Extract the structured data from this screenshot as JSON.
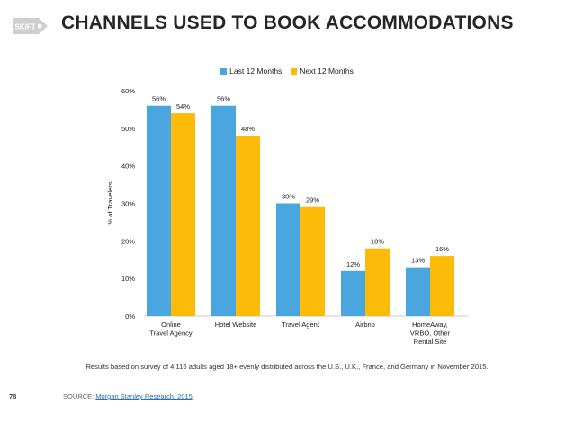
{
  "title": "CHANNELS USED TO BOOK ACCOMMODATIONS",
  "logo": {
    "text": "SKIFT",
    "color": "#cfcfcf"
  },
  "note": "Results based on survey of 4,116 adults aged 18+ evenly distributed across the U.S., U.K., France, and Germany in November 2015.",
  "page_number": "78",
  "source": {
    "label": "SOURCE:",
    "link_text": "Morgan Stanley Research, 2015"
  },
  "colors": {
    "last": "#4aa6de",
    "next": "#fcbb08"
  },
  "chart_data": {
    "type": "bar",
    "title": "",
    "ylabel": "% of Travelers",
    "xlabel": "",
    "ylim": [
      0,
      60
    ],
    "yticks": [
      "0%",
      "10%",
      "20%",
      "30%",
      "40%",
      "50%",
      "60%"
    ],
    "legend": "top-center",
    "grid": false,
    "categories": [
      [
        "Online",
        "Travel Agency"
      ],
      [
        "Hotel Website"
      ],
      [
        "Travel Agent"
      ],
      [
        "Airbnb"
      ],
      [
        "HomeAway,",
        "VRBO, Other",
        "Rental Site"
      ]
    ],
    "series": [
      {
        "name": "Last 12 Months",
        "values": [
          56,
          56,
          30,
          12,
          13
        ],
        "labels": [
          "56%",
          "56%",
          "30%",
          "12%",
          "13%"
        ]
      },
      {
        "name": "Next 12 Months",
        "values": [
          54,
          48,
          29,
          18,
          16
        ],
        "labels": [
          "54%",
          "48%",
          "29%",
          "18%",
          "16%"
        ]
      }
    ]
  }
}
